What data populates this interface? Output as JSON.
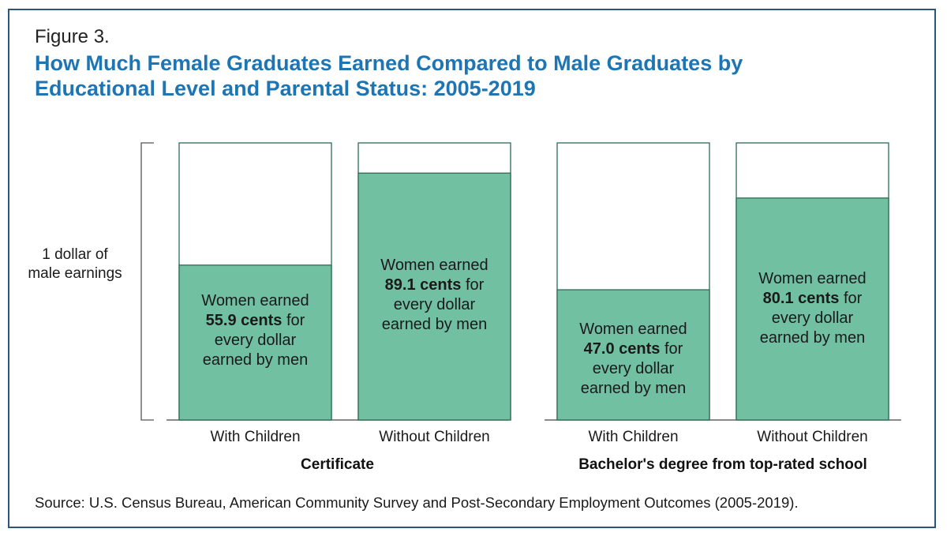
{
  "figure_label": "Figure 3.",
  "title_line1": "How Much Female Graduates Earned Compared to Male Graduates by",
  "title_line2": "Educational Level and Parental Status: 2005-2019",
  "y_label_line1": "1 dollar of",
  "y_label_line2": "male earnings",
  "source": "Source: U.S. Census Bureau, American Community Survey and Post-Secondary Employment Outcomes (2005-2019).",
  "colors": {
    "bar_fill": "#72c0a2",
    "bar_stroke": "#2f6a56",
    "title": "#1d75b3",
    "frame": "#2a567d"
  },
  "chart_data": {
    "type": "bar",
    "ylim": [
      0,
      1
    ],
    "groups": [
      {
        "name": "Certificate",
        "categories": [
          "With Children",
          "Without Children"
        ]
      },
      {
        "name": "Bachelor's degree from top-rated school",
        "categories": [
          "With Children",
          "Without Children"
        ]
      }
    ],
    "bars": [
      {
        "group": "Certificate",
        "category": "With Children",
        "value": 0.559,
        "label_pre": "Women earned",
        "label_bold": "55.9 cents",
        "label_mid": " for",
        "label_line3": "every dollar",
        "label_line4": "earned by men"
      },
      {
        "group": "Certificate",
        "category": "Without Children",
        "value": 0.891,
        "label_pre": "Women earned",
        "label_bold": "89.1 cents",
        "label_mid": " for",
        "label_line3": "every dollar",
        "label_line4": "earned by men"
      },
      {
        "group": "Bachelor's degree from top-rated school",
        "category": "With Children",
        "value": 0.47,
        "label_pre": "Women earned",
        "label_bold": "47.0 cents",
        "label_mid": " for",
        "label_line3": "every dollar",
        "label_line4": "earned by men"
      },
      {
        "group": "Bachelor's degree from top-rated school",
        "category": "Without Children",
        "value": 0.801,
        "label_pre": "Women earned",
        "label_bold": "80.1 cents",
        "label_mid": " for",
        "label_line3": "every dollar",
        "label_line4": "earned by men"
      }
    ]
  }
}
